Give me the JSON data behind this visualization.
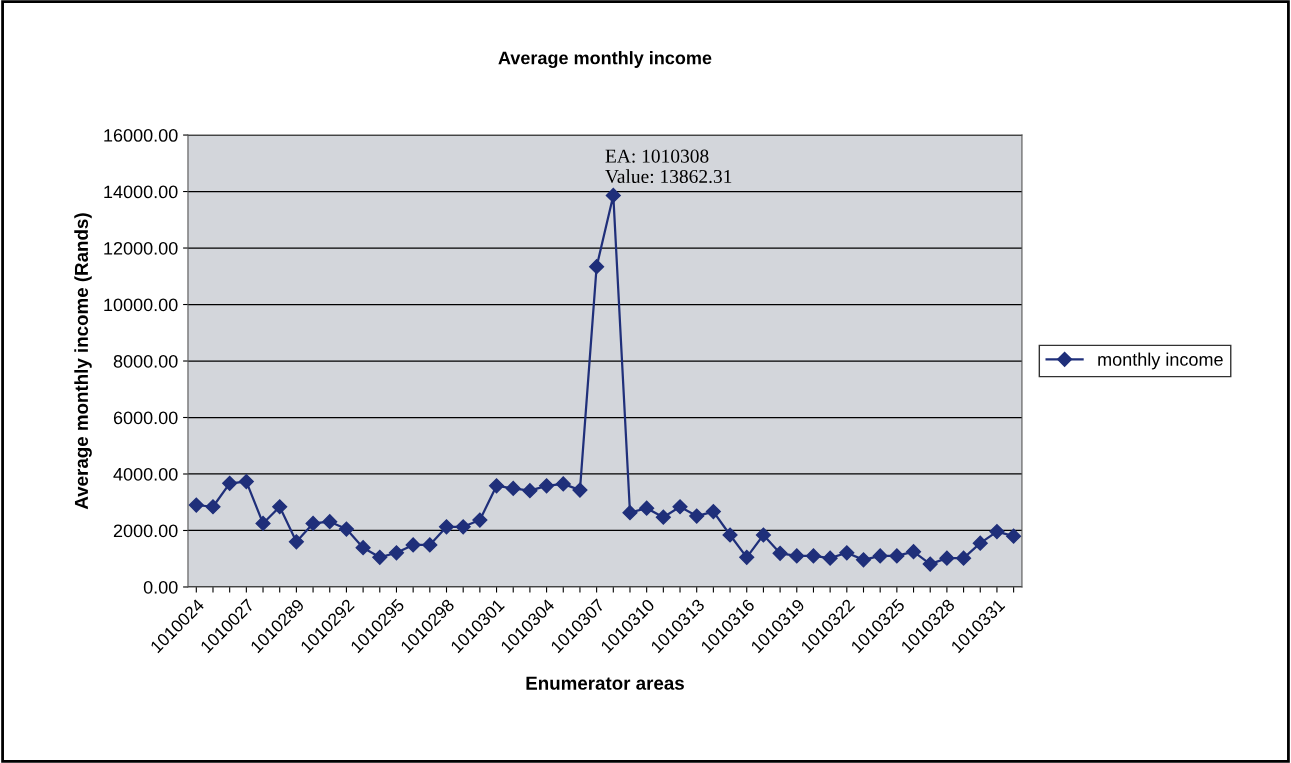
{
  "chart_data": {
    "type": "line",
    "title": "Average monthly income",
    "xlabel": "Enumerator areas",
    "ylabel": "Average monthly income (Rands)",
    "categories": [
      "1010024",
      null,
      null,
      "1010027",
      null,
      null,
      "1010289",
      null,
      null,
      "1010292",
      null,
      null,
      "1010295",
      null,
      null,
      "1010298",
      null,
      null,
      "1010301",
      null,
      null,
      "1010304",
      null,
      null,
      "1010307",
      null,
      null,
      "1010310",
      null,
      null,
      "1010313",
      null,
      null,
      "1010316",
      null,
      null,
      "1010319",
      null,
      null,
      "1010322",
      null,
      null,
      "1010325",
      null,
      null,
      "1010328",
      null,
      null,
      "1010331",
      null
    ],
    "series": [
      {
        "name": "monthly income",
        "color": "#1f2f7a",
        "values": [
          2900,
          2840,
          3670,
          3730,
          2250,
          2840,
          1600,
          2250,
          2310,
          2050,
          1390,
          1050,
          1210,
          1490,
          1490,
          2130,
          2130,
          2370,
          3580,
          3490,
          3410,
          3580,
          3650,
          3430,
          11340,
          13862.31,
          2630,
          2790,
          2470,
          2840,
          2510,
          2670,
          1840,
          1050,
          1840,
          1190,
          1100,
          1100,
          1020,
          1210,
          960,
          1100,
          1100,
          1250,
          810,
          1020,
          1020,
          1550,
          1960,
          1800
        ]
      }
    ],
    "ylim": [
      0,
      16000
    ],
    "yticks": [
      {
        "value": 0,
        "label": "0.00"
      },
      {
        "value": 2000,
        "label": "2000.00"
      },
      {
        "value": 4000,
        "label": "4000.00"
      },
      {
        "value": 6000,
        "label": "6000.00"
      },
      {
        "value": 8000,
        "label": "8000.00"
      },
      {
        "value": 10000,
        "label": "10000.00"
      },
      {
        "value": 12000,
        "label": "12000.00"
      },
      {
        "value": 14000,
        "label": "14000.00"
      },
      {
        "value": 16000,
        "label": "16000.00"
      }
    ],
    "grid": "y",
    "legend": "right",
    "marker": "diamond",
    "line_style": "solid",
    "annotations": [
      "EA: 1010308\nValue: 13862.31"
    ]
  }
}
